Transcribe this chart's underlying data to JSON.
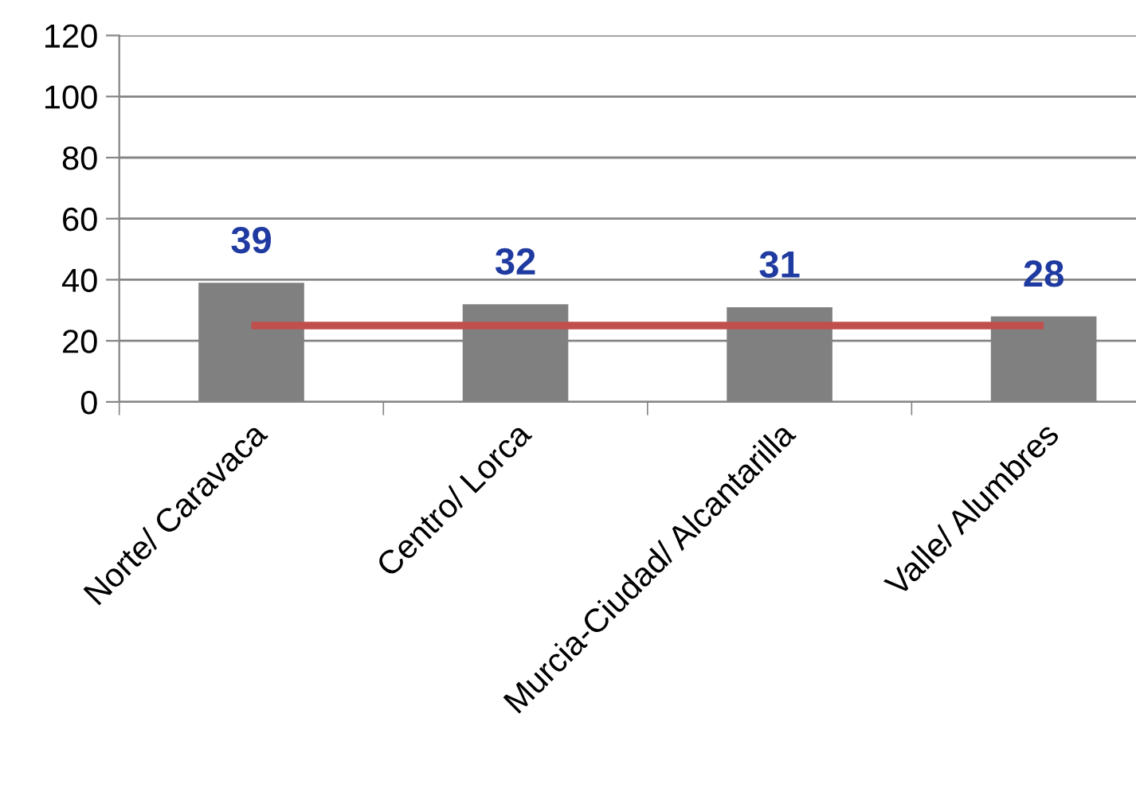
{
  "chart_data": {
    "type": "bar",
    "categories": [
      "Norte/ Caravaca",
      "Centro/ Lorca",
      "Murcia-Ciudad/ Alcantarilla",
      "Valle/ Alumbres"
    ],
    "series": [
      {
        "color": "#808080",
        "values": [
          39,
          32,
          31,
          28
        ],
        "data_labels": true
      },
      {
        "type": "line",
        "color": "#c0504d",
        "values": [
          25,
          25,
          25,
          25
        ],
        "marker": "none"
      }
    ],
    "ylim": [
      0,
      120
    ],
    "yticks": [
      0,
      20,
      40,
      60,
      80,
      100,
      120
    ],
    "grid": "y"
  }
}
